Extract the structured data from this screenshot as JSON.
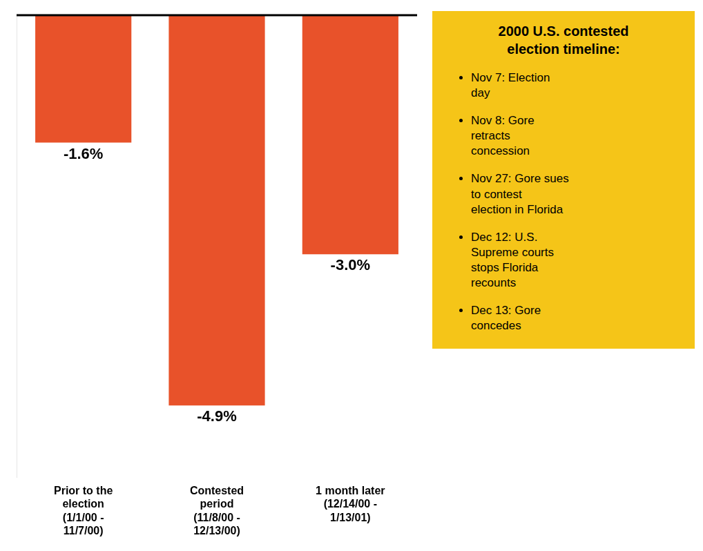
{
  "chart_data": {
    "type": "bar",
    "categories": [
      "Prior to the\nelection\n(1/1/00 -\n11/7/00)",
      "Contested\nperiod\n(11/8/00 -\n12/13/00)",
      "1 month later\n(12/14/00 -\n1/13/01)"
    ],
    "values": [
      -1.6,
      -4.9,
      -3.0
    ],
    "value_labels": [
      "-1.6%",
      "-4.9%",
      "-3.0%"
    ],
    "color": "#E8522A",
    "ylim": [
      -5.8,
      0.0
    ],
    "yticks": [],
    "grid": false,
    "data_labels": true,
    "tick_labels": "x",
    "annotations": [
      {
        "text": "2000 U.S. contested\nelection timeline:",
        "items": [
          "Nov 7: Election\nday",
          "Nov 8: Gore\nretracts\nconcession",
          "Nov 27: Gore sues\nto contest\nelection in Florida",
          "Dec 12: U.S.\nSupreme courts\nstops Florida\nrecounts",
          "Dec 13: Gore\nconcedes"
        ],
        "color": "#F5C518"
      }
    ]
  }
}
